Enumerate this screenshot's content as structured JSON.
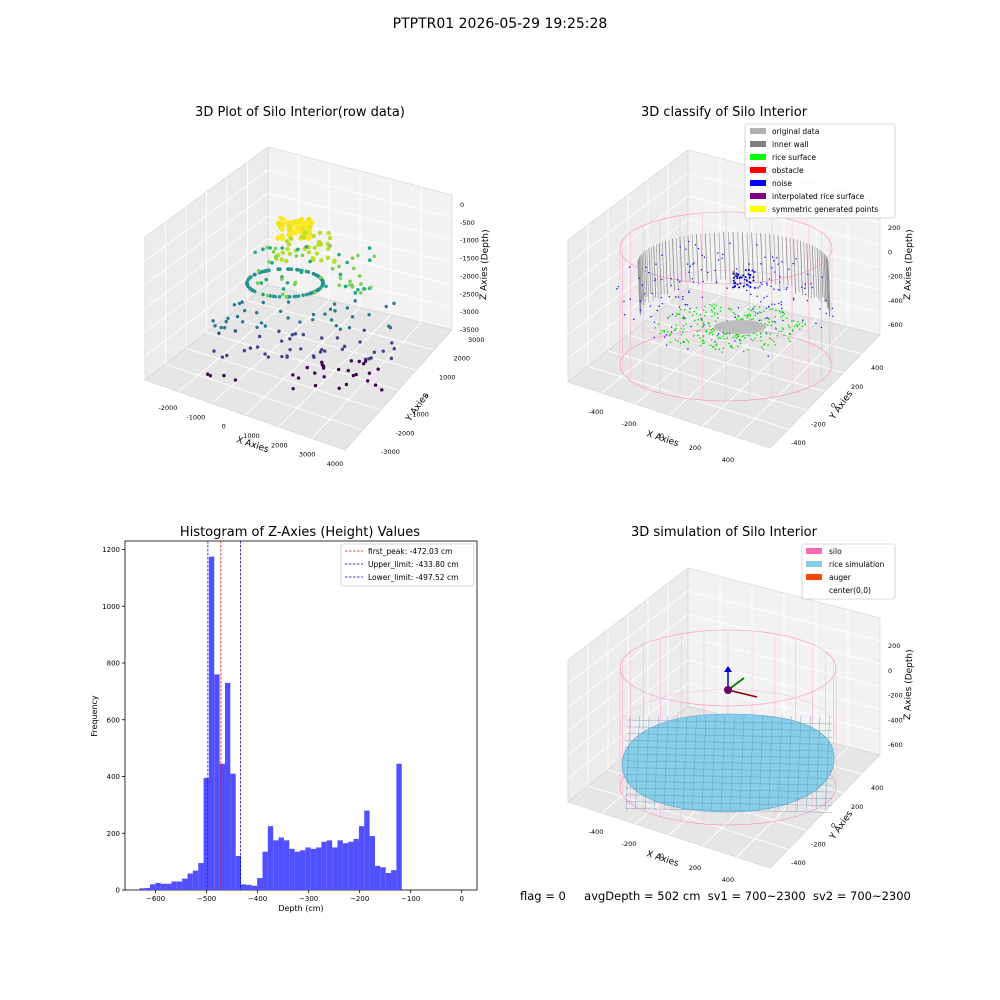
{
  "figure": {
    "suptitle": "PTPTR01 2026-05-29 19:25:28",
    "status": {
      "flag": "flag = 0",
      "avg": "avgDepth = 502 cm",
      "sv1": "sv1 = 700~2300",
      "sv2": "sv2 = 700~2300"
    }
  },
  "chart_data": [
    {
      "type": "scatter",
      "projection": "3d",
      "title": "3D Plot of Silo Interior(row data)",
      "xlabel": "X Axies",
      "ylabel": "Y Axies",
      "zlabel": "Z Axies (Depth)",
      "xticks": [
        "-2000",
        "-1000",
        "0",
        "1000",
        "2000",
        "3000",
        "4000"
      ],
      "yticks": [
        "-3000",
        "-2000",
        "-1000",
        "0",
        "1000",
        "2000",
        "3000"
      ],
      "zticks": [
        "0",
        "-500",
        "-1000",
        "-1500",
        "-2000",
        "-2500",
        "-3000",
        "-3500"
      ],
      "colormap": "viridis",
      "grid": true
    },
    {
      "type": "scatter",
      "projection": "3d",
      "title": "3D classify of Silo Interior",
      "xlabel": "X Axies",
      "ylabel": "Y Axies",
      "zlabel": "Z Axies (Depth)",
      "xticks": [
        "-400",
        "-200",
        "0",
        "200",
        "400"
      ],
      "yticks": [
        "-400",
        "-200",
        "0",
        "200",
        "400"
      ],
      "zticks": [
        "200",
        "0",
        "-200",
        "-400",
        "-600"
      ],
      "legend_position": "top-right",
      "legend": [
        {
          "label": "original data",
          "color": "#b0b0b0"
        },
        {
          "label": "inner wall",
          "color": "#808080"
        },
        {
          "label": "rice surface",
          "color": "#00ff00"
        },
        {
          "label": "obstacle",
          "color": "#ff0000"
        },
        {
          "label": "noise",
          "color": "#0000ff"
        },
        {
          "label": "interpolated rice surface",
          "color": "#800080"
        },
        {
          "label": "symmetric generated points",
          "color": "#ffff00"
        }
      ],
      "grid": true
    },
    {
      "type": "bar",
      "subtype": "histogram",
      "title": "Histogram of Z-Axies (Height) Values",
      "xlabel": "Depth (cm)",
      "ylabel": "Frequency",
      "xlim": [
        -660,
        30
      ],
      "ylim": [
        0,
        1230
      ],
      "xticks": [
        -600,
        -500,
        -400,
        -300,
        -200,
        -100,
        0
      ],
      "yticks": [
        0,
        200,
        400,
        600,
        800,
        1000,
        1200
      ],
      "bar_color": "#5050ff",
      "bin_width": 10.5,
      "bin_start": -632,
      "values": [
        6,
        7,
        20,
        25,
        22,
        22,
        30,
        30,
        40,
        58,
        68,
        95,
        395,
        1175,
        760,
        445,
        730,
        410,
        120,
        20,
        18,
        15,
        42,
        135,
        225,
        175,
        185,
        175,
        145,
        135,
        140,
        150,
        145,
        150,
        170,
        175,
        150,
        175,
        165,
        170,
        180,
        225,
        280,
        190,
        85,
        80,
        60,
        70,
        445
      ],
      "vlines": [
        {
          "x": -472.03,
          "color": "#ff0000",
          "label": "first_peak: -472.03 cm"
        },
        {
          "x": -433.8,
          "color": "#00008b",
          "label": "Upper_limit: -433.80 cm"
        },
        {
          "x": -497.52,
          "color": "#0000ff",
          "label": "Lower_limit: -497.52 cm"
        }
      ],
      "legend_position": "top-right",
      "grid": false
    },
    {
      "type": "scatter",
      "projection": "3d",
      "title": "3D simulation of Silo Interior",
      "xlabel": "X Axies",
      "ylabel": "Y Axies",
      "zlabel": "Z Axies (Depth)",
      "xticks": [
        "-400",
        "-200",
        "0",
        "200",
        "400"
      ],
      "yticks": [
        "-400",
        "-200",
        "0",
        "200",
        "400"
      ],
      "zticks": [
        "200",
        "0",
        "-200",
        "-400",
        "-600"
      ],
      "legend_position": "top-right",
      "legend": [
        {
          "label": "silo",
          "color": "#ff69b4"
        },
        {
          "label": "rice simulation",
          "color": "#87ceeb"
        },
        {
          "label": "auger",
          "color": "#ff4500"
        },
        {
          "label": "center(0,0)",
          "color": ""
        }
      ],
      "grid": true
    }
  ]
}
